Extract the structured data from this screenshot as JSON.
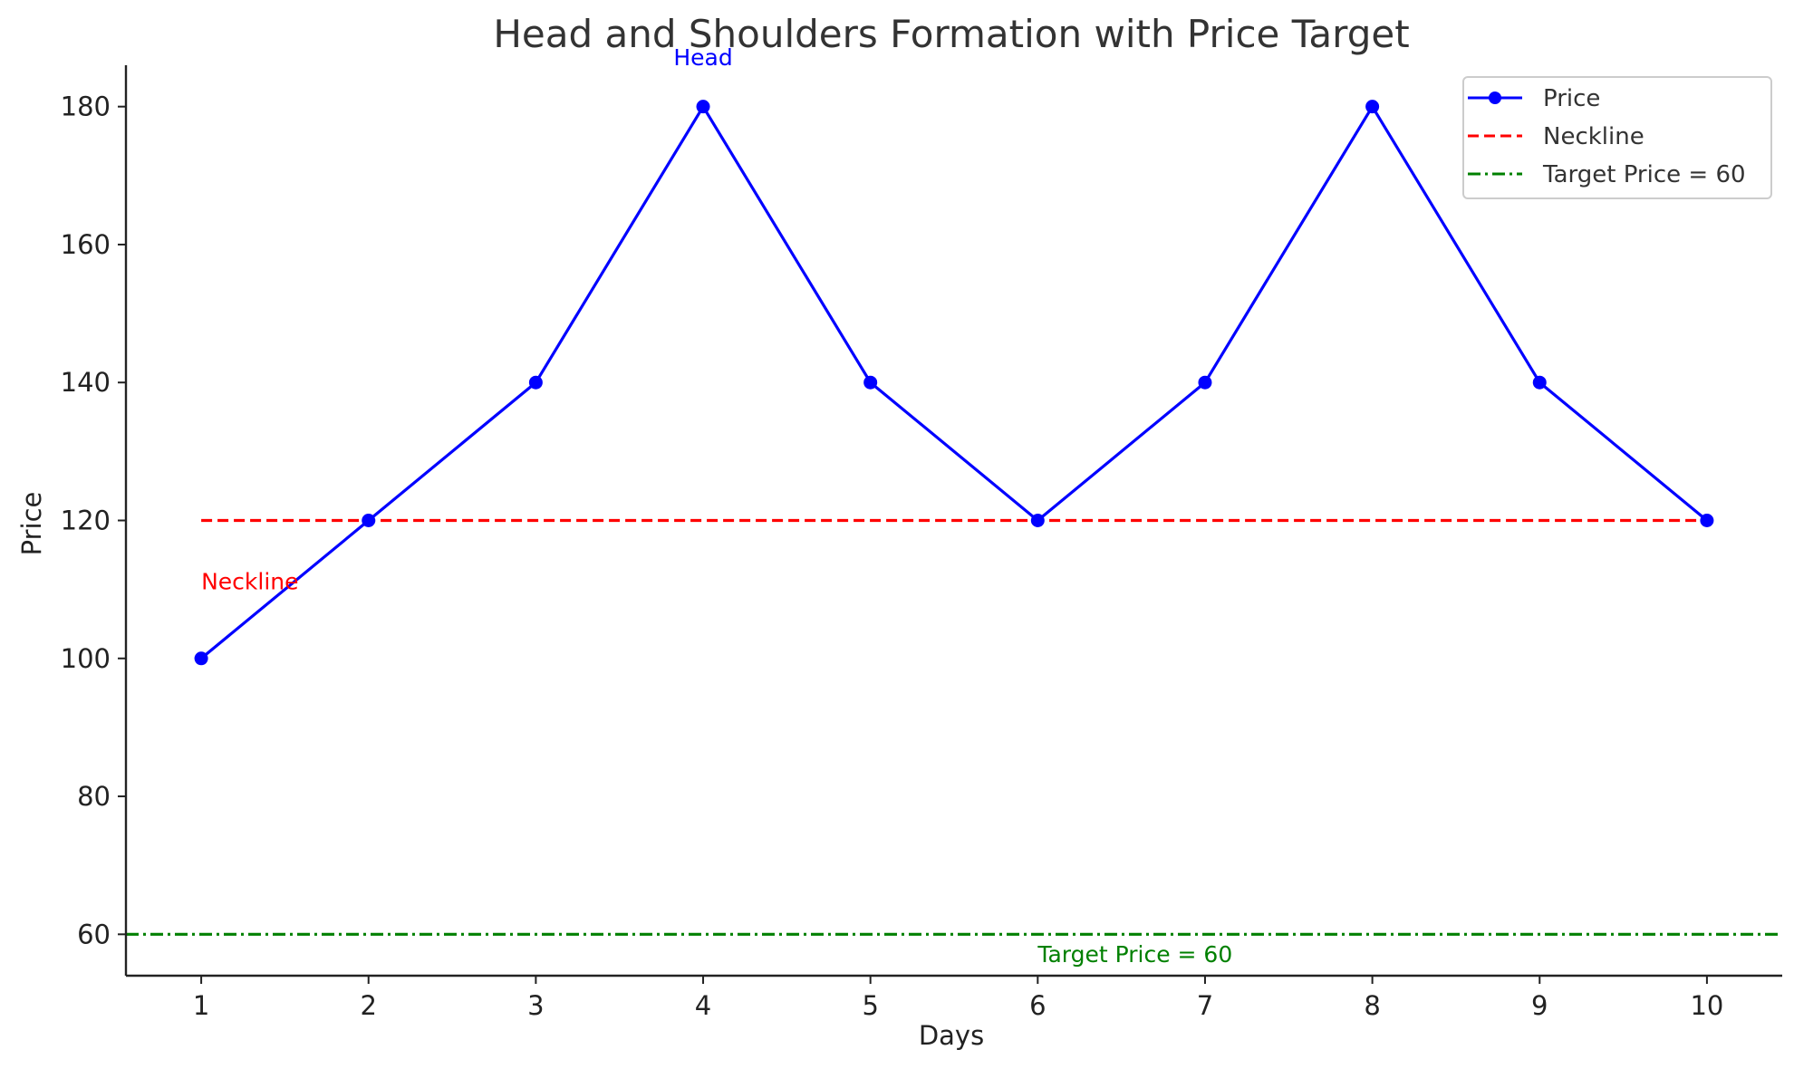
{
  "chart_data": {
    "type": "line",
    "title": "Head and Shoulders Formation with Price Target",
    "xlabel": "Days",
    "ylabel": "Price",
    "x": [
      1,
      2,
      3,
      4,
      5,
      6,
      7,
      8,
      9,
      10
    ],
    "xlim": [
      0.55,
      10.45
    ],
    "ylim": [
      54,
      186
    ],
    "x_ticks": [
      1,
      2,
      3,
      4,
      5,
      6,
      7,
      8,
      9,
      10
    ],
    "y_ticks": [
      60,
      80,
      100,
      120,
      140,
      160,
      180
    ],
    "grid": false,
    "legend_position": "top-right",
    "series": [
      {
        "name": "Price",
        "values": [
          100,
          120,
          140,
          180,
          140,
          120,
          140,
          180,
          140,
          120
        ],
        "color": "#0000ff",
        "style": "solid",
        "marker": "circle"
      }
    ],
    "reference_lines": [
      {
        "name": "Neckline",
        "y": 120,
        "x_range": [
          1,
          10
        ],
        "color": "#ff0000",
        "style": "dashed"
      },
      {
        "name": "Target Price = 60",
        "y": 60,
        "x_range": "full",
        "color": "#008000",
        "style": "dashdot"
      }
    ],
    "annotations": [
      {
        "text": "Head",
        "x": 4,
        "y": 186,
        "color": "#0000ff"
      },
      {
        "text": "Neckline",
        "x": 1,
        "y": 110,
        "color": "#ff0000"
      },
      {
        "text": "Target Price = 60",
        "x": 6,
        "y": 56,
        "color": "#008000"
      }
    ],
    "legend": [
      "Price",
      "Neckline",
      "Target Price = 60"
    ]
  }
}
